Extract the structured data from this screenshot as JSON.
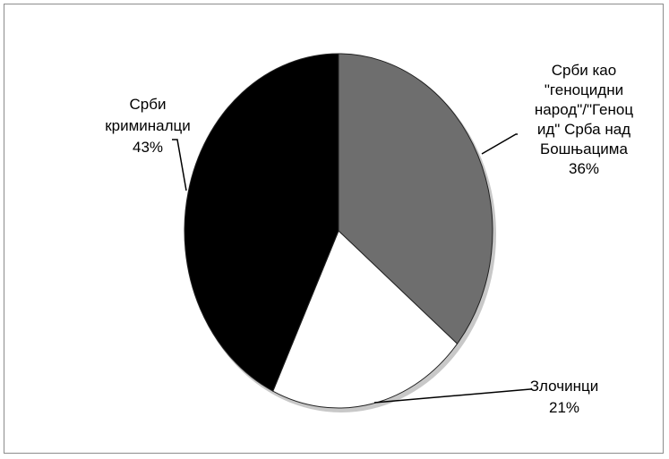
{
  "chart_data": {
    "type": "pie",
    "title": "",
    "slices": [
      {
        "label_lines": [
          "Срби као",
          "\"геноцидни",
          "народ\"/\"Геноц",
          "ид\" Срба над",
          "Бошњацима"
        ],
        "value": 36,
        "percent_label": "36%",
        "color": "#6e6e6e"
      },
      {
        "label_lines": [
          "Злочинци"
        ],
        "value": 21,
        "percent_label": "21%",
        "color": "#ffffff"
      },
      {
        "label_lines": [
          "Срби",
          "криминалци"
        ],
        "value": 43,
        "percent_label": "43%",
        "color": "#000000"
      }
    ],
    "start_angle_deg": 0,
    "direction": "clockwise",
    "legend": "none",
    "label_style": "outside-with-leader-lines"
  }
}
